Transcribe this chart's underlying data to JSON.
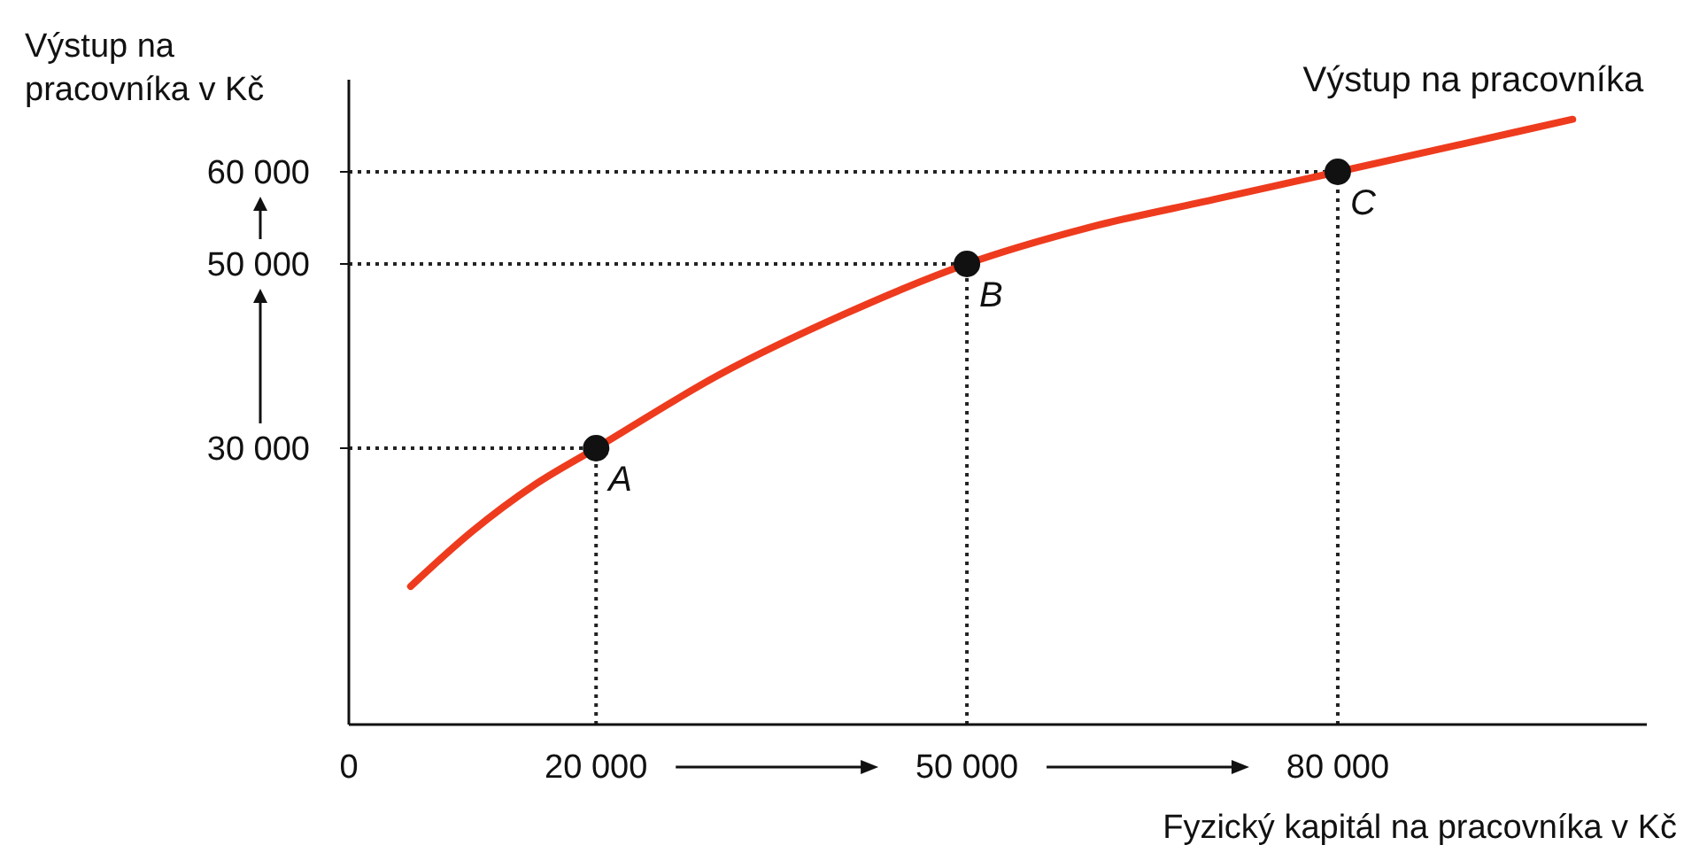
{
  "chart_data": {
    "type": "line",
    "xlabel": "Fyzický kapitál na pracovníka v Kč",
    "ylabel": "Výstup na pracovníka v Kč",
    "xlim": [
      0,
      105000
    ],
    "ylim": [
      0,
      70000
    ],
    "xticks": [
      {
        "value": 0,
        "label": "0"
      },
      {
        "value": 20000,
        "label": "20 000"
      },
      {
        "value": 50000,
        "label": "50 000"
      },
      {
        "value": 80000,
        "label": "80 000"
      }
    ],
    "yticks": [
      {
        "value": 30000,
        "label": "30 000"
      },
      {
        "value": 50000,
        "label": "50 000"
      },
      {
        "value": 60000,
        "label": "60 000"
      }
    ],
    "grid": false,
    "series": [
      {
        "name": "Výstup na pracovníka",
        "color": "#ee3b1e",
        "marker": "none",
        "x": [
          5000,
          10000,
          15000,
          20000,
          30000,
          40000,
          50000,
          60000,
          70000,
          80000,
          90000,
          99000
        ],
        "values": [
          15000,
          21000,
          26000,
          30000,
          38000,
          44500,
          50000,
          54000,
          57000,
          60000,
          63000,
          65700
        ]
      },
      {
        "type": "scatter",
        "color": "#111111",
        "marker": "circle",
        "x": [
          20000,
          50000,
          80000
        ],
        "values": [
          30000,
          50000,
          60000
        ]
      }
    ],
    "ref_lines": [
      {
        "axis": "x",
        "value": 20000,
        "line_style": "dotted"
      },
      {
        "axis": "x",
        "value": 50000,
        "line_style": "dotted"
      },
      {
        "axis": "x",
        "value": 80000,
        "line_style": "dotted"
      },
      {
        "axis": "y",
        "value": 30000,
        "line_style": "dotted"
      },
      {
        "axis": "y",
        "value": 50000,
        "line_style": "dotted"
      },
      {
        "axis": "y",
        "value": 60000,
        "line_style": "dotted"
      }
    ],
    "annotations": [
      {
        "text": "A",
        "x": 20000,
        "y": 30000
      },
      {
        "text": "B",
        "x": 50000,
        "y": 50000
      },
      {
        "text": "C",
        "x": 80000,
        "y": 60000
      }
    ]
  }
}
